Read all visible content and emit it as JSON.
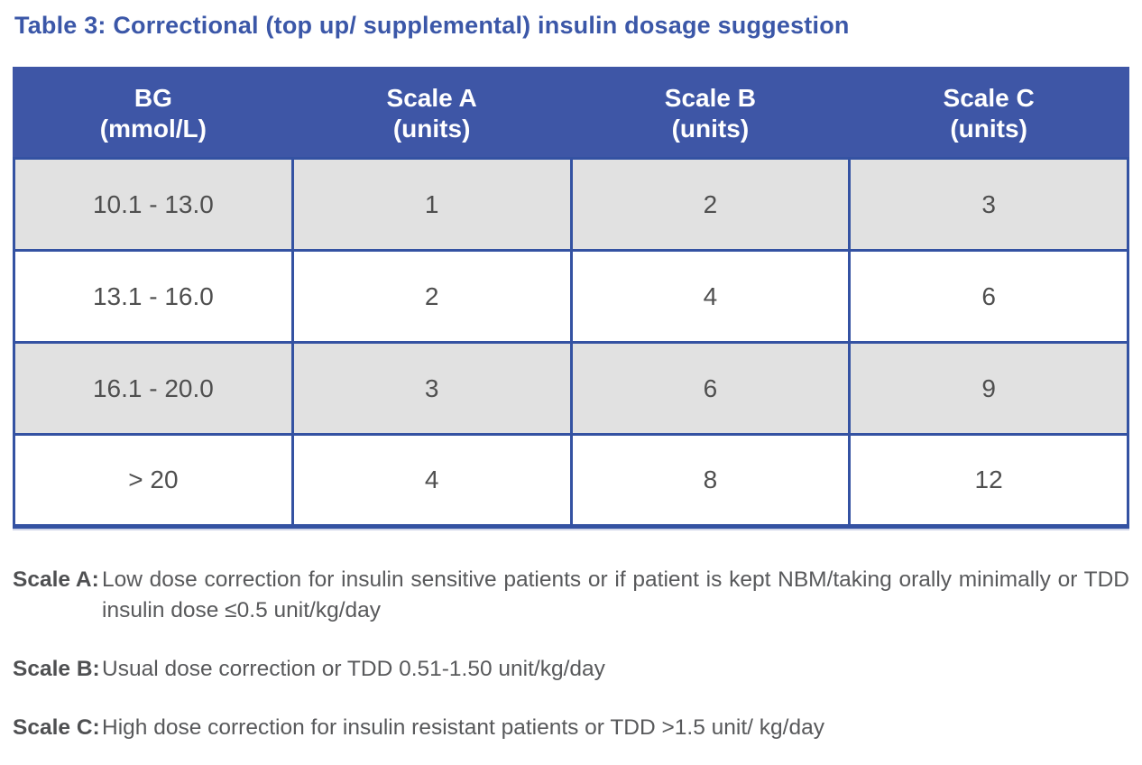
{
  "page": {
    "title": "Table 3: Correctional (top up/ supplemental) insulin dosage suggestion"
  },
  "table": {
    "headers": [
      {
        "line1": "BG",
        "line2": "(mmol/L)"
      },
      {
        "line1": "Scale A",
        "line2": "(units)"
      },
      {
        "line1": "Scale B",
        "line2": "(units)"
      },
      {
        "line1": "Scale C",
        "line2": "(units)"
      }
    ],
    "rows": [
      {
        "bg": "10.1 - 13.0",
        "scale_a": "1",
        "scale_b": "2",
        "scale_c": "3"
      },
      {
        "bg": "13.1 - 16.0",
        "scale_a": "2",
        "scale_b": "4",
        "scale_c": "6"
      },
      {
        "bg": "16.1 - 20.0",
        "scale_a": "3",
        "scale_b": "6",
        "scale_c": "9"
      },
      {
        "bg": "> 20",
        "scale_a": "4",
        "scale_b": "8",
        "scale_c": "12"
      }
    ]
  },
  "notes": [
    {
      "label": "Scale A:",
      "text": "Low dose correction for insulin sensitive patients or if patient is kept NBM/taking orally minimally or TDD insulin dose ≤0.5 unit/kg/day"
    },
    {
      "label": "Scale B:",
      "text": "Usual dose correction or TDD 0.51-1.50 unit/kg/day"
    },
    {
      "label": "Scale C:",
      "text": "High dose correction for insulin resistant patients or TDD >1.5 unit/ kg/day"
    }
  ],
  "colors": {
    "title_blue": "#3B57A8",
    "header_bg": "#3E56A6",
    "header_text": "#FFFFFF",
    "table_border": "#3452A2",
    "row_shaded": "#E1E1E1",
    "row_plain": "#FFFFFF",
    "cell_text": "#4F4F4F",
    "note_label": "#4F5052",
    "note_text": "#58595B"
  }
}
